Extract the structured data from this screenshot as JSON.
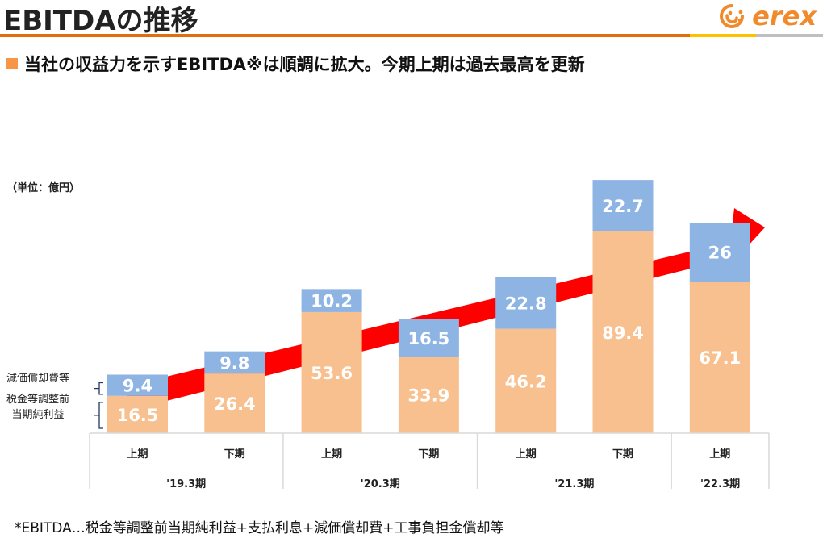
{
  "header": {
    "title": "EBITDAの推移",
    "logo_text": "erex",
    "logo_icon": "smile-e-icon"
  },
  "subtitle": "当社の収益力を示すEBITDA※は順調に拡大。今期上期は過去最高を更新",
  "unit_label": "（単位：億円）",
  "legend": {
    "depreciation": "減価償却費等",
    "pretax_line1": "税金等調整前",
    "pretax_line2": "当期純利益"
  },
  "footnote": "*EBITDA…税金等調整前当期純利益+支払利息+減価償却費+工事負担金償却等",
  "colors": {
    "pretax": "#f9c08f",
    "depreciation": "#8eb4e3",
    "arrow": "#ff0000",
    "accent_orange": "#e46c0a",
    "accent_yellow": "#ffc000",
    "accent_gray": "#bfbfbf",
    "bracket": "#1f3864"
  },
  "chart_data": {
    "type": "bar",
    "stacked": true,
    "title": "EBITDAの推移",
    "ylabel": "億円",
    "xlabel": "",
    "categories": [
      "上期",
      "下期",
      "上期",
      "下期",
      "上期",
      "下期",
      "上期"
    ],
    "groups": [
      {
        "label": "'19.3期",
        "span": 2
      },
      {
        "label": "'20.3期",
        "span": 2
      },
      {
        "label": "'21.3期",
        "span": 2
      },
      {
        "label": "'22.3期",
        "span": 1
      }
    ],
    "series": [
      {
        "name": "税金等調整前当期純利益",
        "values": [
          16.5,
          26.4,
          53.6,
          33.9,
          46.2,
          89.4,
          67.1
        ]
      },
      {
        "name": "減価償却費等",
        "values": [
          9.4,
          9.8,
          10.2,
          16.5,
          22.8,
          22.7,
          26
        ]
      }
    ],
    "ylim": [
      0,
      115
    ],
    "grid": false,
    "annotation": "upward trend arrow"
  }
}
